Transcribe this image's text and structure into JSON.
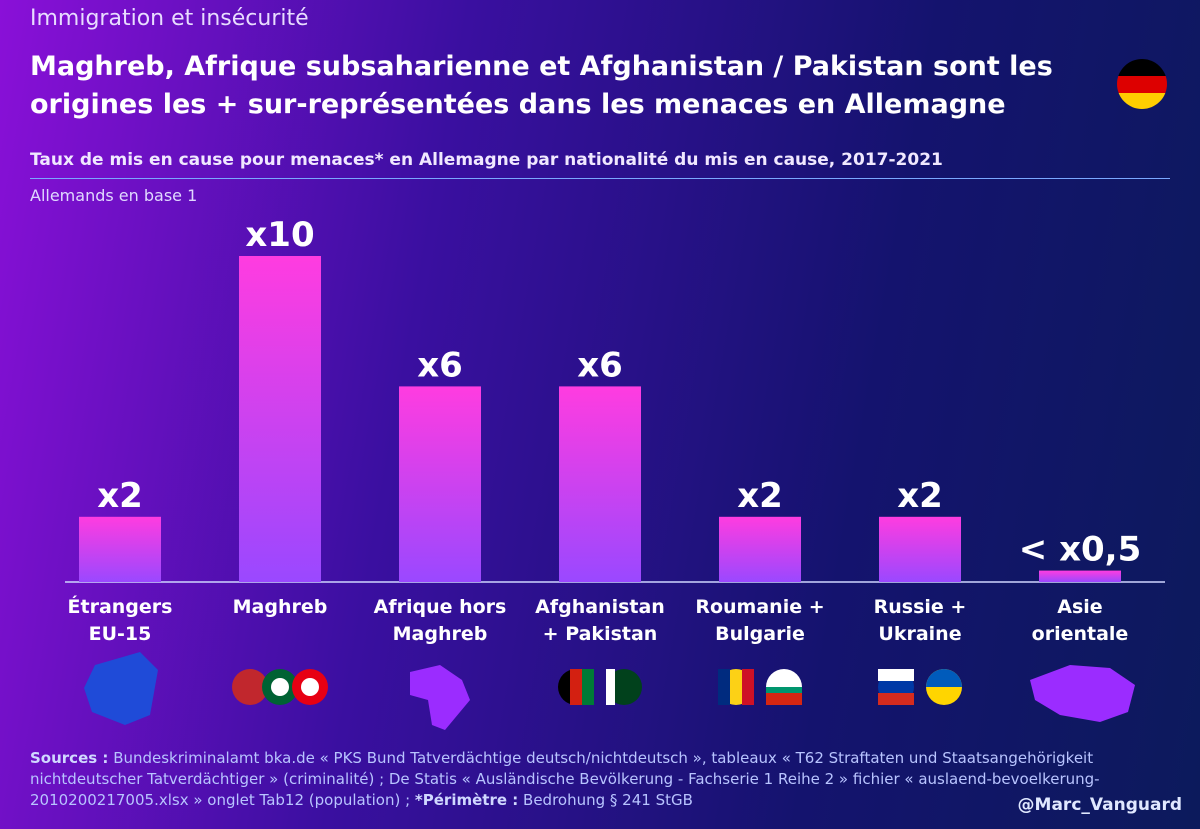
{
  "chart_data": {
    "type": "bar",
    "kicker": "Immigration et insécurité",
    "title": "Maghreb, Afrique subsaharienne et Afghanistan / Pakistan sont les origines les + sur-représentées dans les menaces en Allemagne",
    "subtitle": "Taux de mis en cause pour menaces* en Allemagne par nationalité du mis en cause, 2017-2021",
    "note": "Allemands en base 1",
    "categories": [
      "Étrangers\nEU-15",
      "Maghreb",
      "Afrique hors\nMaghreb",
      "Afghanistan\n+ Pakistan",
      "Roumanie +\nBulgarie",
      "Russie +\nUkraine",
      "Asie\norientale"
    ],
    "values": [
      2,
      10,
      6,
      6,
      2,
      2,
      0.35
    ],
    "value_labels": [
      "x2",
      "x10",
      "x6",
      "x6",
      "x2",
      "x2",
      "< x0,5"
    ],
    "color": "#f03cf5",
    "sources_label": "Sources :",
    "sources": "Bundeskriminalamt bka.de « PKS Bund Tatverdächtige deutsch/nichtdeutsch », tableaux « T62 Straftaten und Staatsangehörigkeit nichtdeutscher Tatverdächtiger » (criminalité) ; De Statis « Ausländische Bevölkerung - Fachserie 1 Reihe 2 » fichier « auslaend-bevoelkerung-2010200217005.xlsx » onglet Tab12 (population) ;",
    "perimetre_label": "*Périmètre :",
    "perimetre": "Bedrohung § 241 StGB",
    "credit": "@Marc_Vanguard"
  }
}
